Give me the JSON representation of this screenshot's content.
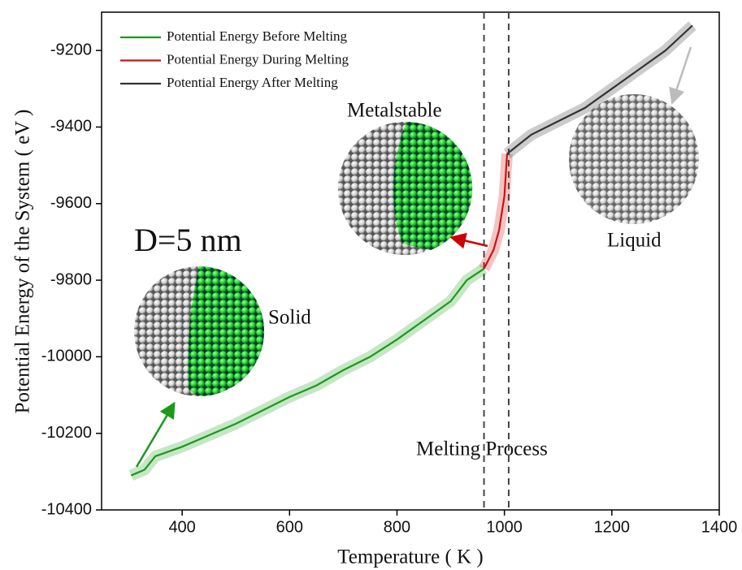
{
  "chart_data": {
    "type": "line",
    "x_label": "Temperature ( K )",
    "y_label": "Potential Energy of the System ( eV )",
    "xlim": [
      250,
      1400
    ],
    "xticks": [
      400,
      600,
      800,
      1000,
      1200,
      1400
    ],
    "ylim": [
      -10400,
      -9100
    ],
    "yticks": [
      -10400,
      -10200,
      -10000,
      -9800,
      -9600,
      -9400,
      -9200
    ],
    "vlines": [
      962,
      1008
    ],
    "annotations": [
      "D=5 nm",
      "Solid",
      "Metalstable",
      "Liquid",
      "Melting Process"
    ],
    "series": [
      {
        "name": "Potential Energy Before Melting",
        "color": "#1a9a1a",
        "x": [
          305,
          330,
          350,
          400,
          450,
          500,
          550,
          600,
          650,
          700,
          750,
          800,
          850,
          900,
          930,
          962
        ],
        "values": [
          -10310,
          -10295,
          -10260,
          -10235,
          -10205,
          -10175,
          -10140,
          -10105,
          -10075,
          -10035,
          -10000,
          -9955,
          -9905,
          -9855,
          -9800,
          -9770
        ]
      },
      {
        "name": "Potential Energy During Melting",
        "color": "#d01010",
        "x": [
          962,
          980,
          990,
          1000,
          1005
        ],
        "values": [
          -9770,
          -9720,
          -9670,
          -9580,
          -9470
        ]
      },
      {
        "name": "Potential Energy After Melting",
        "color": "#333333",
        "x": [
          1005,
          1050,
          1100,
          1150,
          1200,
          1250,
          1300,
          1350
        ],
        "values": [
          -9470,
          -9420,
          -9385,
          -9350,
          -9300,
          -9250,
          -9200,
          -9135
        ]
      }
    ]
  }
}
